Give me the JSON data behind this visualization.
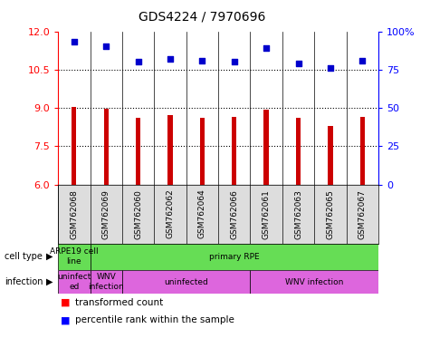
{
  "title": "GDS4224 / 7970696",
  "samples": [
    "GSM762068",
    "GSM762069",
    "GSM762060",
    "GSM762062",
    "GSM762064",
    "GSM762066",
    "GSM762061",
    "GSM762063",
    "GSM762065",
    "GSM762067"
  ],
  "transformed_counts": [
    9.05,
    8.97,
    8.62,
    8.72,
    8.62,
    8.65,
    8.92,
    8.62,
    8.3,
    8.63
  ],
  "percentile_ranks": [
    93,
    90,
    80,
    82,
    81,
    80,
    89,
    79,
    76,
    81
  ],
  "ylim_left": [
    6,
    12
  ],
  "ylim_right": [
    0,
    100
  ],
  "yticks_left": [
    6,
    7.5,
    9,
    10.5,
    12
  ],
  "yticks_right": [
    0,
    25,
    50,
    75,
    100
  ],
  "bar_color": "#cc0000",
  "dot_color": "#0000cc",
  "bar_bottom": 6,
  "dotted_levels": [
    7.5,
    9.0,
    10.5
  ],
  "cell_type_blocks": [
    {
      "text": "ARPE19 cell\nline",
      "start": 0,
      "end": 1,
      "color": "#66dd55"
    },
    {
      "text": "primary RPE",
      "start": 1,
      "end": 10,
      "color": "#66dd55"
    }
  ],
  "infection_blocks": [
    {
      "text": "uninfect\ned",
      "start": 0,
      "end": 1,
      "color": "#dd77dd"
    },
    {
      "text": "WNV\ninfection",
      "start": 1,
      "end": 2,
      "color": "#dd77dd"
    },
    {
      "text": "uninfected",
      "start": 2,
      "end": 6,
      "color": "#dd77dd"
    },
    {
      "text": "WNV infection",
      "start": 6,
      "end": 10,
      "color": "#dd77dd"
    }
  ],
  "cell_type_row_label": "cell type",
  "infection_row_label": "infection",
  "legend_items": [
    {
      "color": "#cc0000",
      "label": "transformed count"
    },
    {
      "color": "#0000cc",
      "label": "percentile rank within the sample"
    }
  ]
}
